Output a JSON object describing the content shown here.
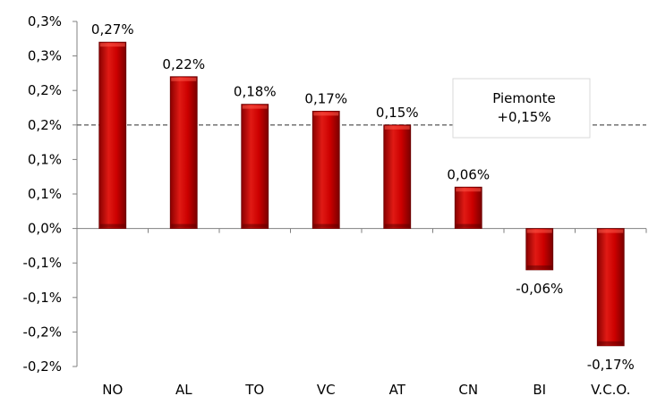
{
  "chart_data": {
    "type": "bar",
    "categories": [
      "NO",
      "AL",
      "TO",
      "VC",
      "AT",
      "CN",
      "BI",
      "V.C.O."
    ],
    "values": [
      0.27,
      0.22,
      0.18,
      0.17,
      0.15,
      0.06,
      -0.06,
      -0.17
    ],
    "data_labels": [
      "0,27%",
      "0,22%",
      "0,18%",
      "0,17%",
      "0,15%",
      "0,06%",
      "-0,06%",
      "-0,17%"
    ],
    "y_ticks": [
      0.3,
      0.25,
      0.2,
      0.15,
      0.1,
      0.05,
      0.0,
      -0.05,
      -0.1,
      -0.15,
      -0.2
    ],
    "y_tick_labels": [
      "0,3%",
      "0,3%",
      "0,2%",
      "0,2%",
      "0,1%",
      "0,1%",
      "0,0%",
      "-0,1%",
      "-0,1%",
      "-0,2%",
      "-0,2%"
    ],
    "ylim": [
      -0.2,
      0.3
    ],
    "reference_line": {
      "value": 0.15,
      "style": "dashed"
    },
    "reference_box": {
      "line1": "Piemonte",
      "line2": "+0,15%"
    },
    "bar_color": "#c00000",
    "bar_highlight": "#e8281e",
    "bar_shadow": "#7a0000",
    "grid": false,
    "legend": "none",
    "title": "",
    "xlabel": "",
    "ylabel": ""
  }
}
